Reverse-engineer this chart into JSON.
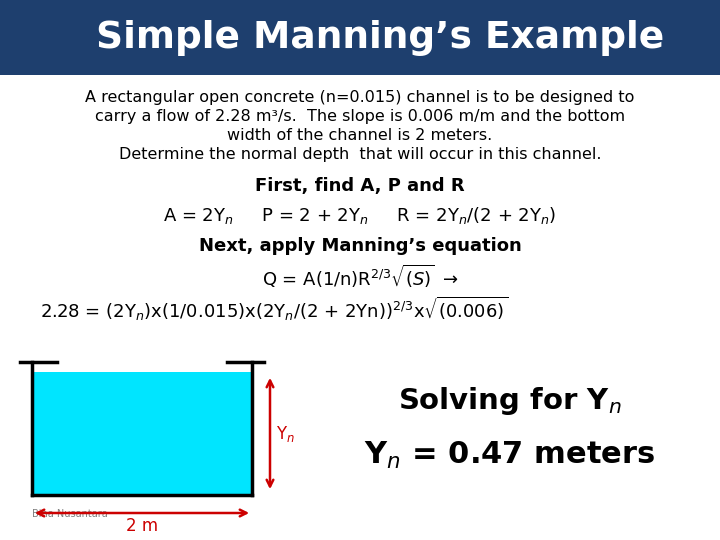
{
  "title": "Simple Manning’s Example",
  "title_bg_color": "#1e3f6e",
  "body_bg_color": "#ffffff",
  "line1": "A rectangular open concrete (n=0.015) channel is to be designed to",
  "line2": "carry a flow of 2.28 m³/s.  The slope is 0.006 m/m and the bottom",
  "line3": "width of the channel is 2 meters.",
  "line4": "Determine the normal depth  that will occur in this channel.",
  "bold1": "First, find A, P and R",
  "bold2": "Next, apply Manning’s equation",
  "channel_fill_color": "#00e5ff",
  "arrow_color": "#cc0000",
  "bina_label": "Bina Nusantara"
}
